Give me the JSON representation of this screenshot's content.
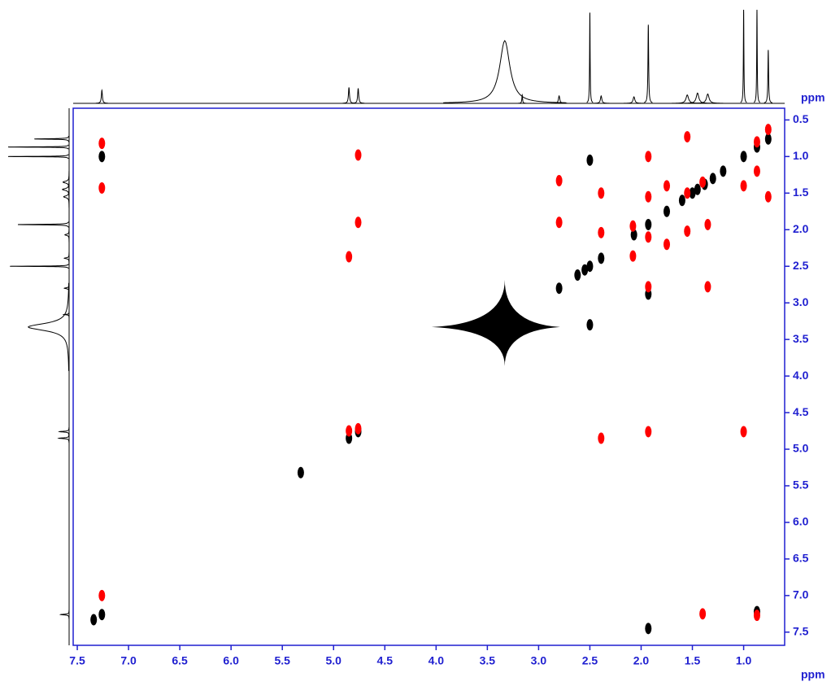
{
  "chart_data": {
    "type": "nmr2d",
    "x_label": "ppm",
    "y_label": "ppm",
    "xlim": [
      7.54,
      0.6
    ],
    "ylim": [
      0.34,
      7.68
    ],
    "xticks": [
      7.5,
      {
        "value": 7,
        "label": "7.0"
      },
      6.5,
      {
        "value": 6,
        "label": "6.0"
      },
      5.5,
      {
        "value": 5,
        "label": "5.0"
      },
      4.5,
      {
        "value": 4,
        "label": "4.0"
      },
      3.5,
      {
        "value": 3,
        "label": "3.0"
      },
      2.5,
      {
        "value": 2,
        "label": "2.0"
      },
      1.5,
      {
        "value": 1,
        "label": "1.0"
      }
    ],
    "yticks": [
      0.5,
      {
        "value": 1,
        "label": "1.0"
      },
      1.5,
      {
        "value": 2,
        "label": "2.0"
      },
      2.5,
      {
        "value": 3,
        "label": "3.0"
      },
      3.5,
      {
        "value": 4,
        "label": "4.0"
      },
      4.5,
      {
        "value": 5,
        "label": "5.0"
      },
      5.5,
      {
        "value": 6,
        "label": "6.0"
      },
      6.5,
      {
        "value": 7,
        "label": "7.0"
      },
      7.5
    ],
    "axis_color": "#1f1fd0",
    "series": [
      {
        "color": "#000000",
        "marker": "ellipse",
        "x": [
          7.26,
          7.34,
          5.32,
          4.85,
          4.76,
          2.8,
          2.62,
          2.55,
          2.5,
          2.39,
          2.07,
          1.93,
          1.75,
          1.6,
          1.5,
          1.45,
          1.38,
          1.3,
          1.2,
          1.0,
          0.87,
          0.76,
          7.26,
          1.93,
          2.5,
          2.5,
          0.87,
          1.93
        ],
        "values": [
          7.26,
          7.33,
          5.32,
          4.85,
          4.76,
          2.8,
          2.62,
          2.55,
          2.5,
          2.39,
          2.07,
          1.93,
          1.75,
          1.6,
          1.5,
          1.45,
          1.38,
          1.3,
          1.2,
          1.0,
          0.87,
          0.76,
          1.0,
          2.88,
          1.05,
          3.3,
          7.22,
          7.45
        ]
      },
      {
        "color": "#000000",
        "marker": "star",
        "x": [
          3.33
        ],
        "values": [
          3.33
        ]
      },
      {
        "color": "#ff0000",
        "marker": "ellipse",
        "x": [
          7.26,
          7.26,
          7.26,
          4.76,
          4.76,
          4.85,
          4.85,
          4.76,
          2.8,
          2.8,
          2.39,
          2.39,
          2.39,
          2.08,
          2.08,
          1.93,
          1.93,
          1.93,
          1.93,
          1.93,
          1.75,
          1.75,
          1.55,
          1.55,
          1.55,
          1.4,
          1.35,
          1.35,
          1.4,
          1.0,
          1.0,
          0.87,
          0.87,
          0.87,
          0.76,
          0.76
        ],
        "values": [
          0.82,
          1.43,
          7.0,
          0.98,
          1.9,
          2.37,
          4.75,
          4.72,
          1.33,
          1.9,
          2.04,
          1.5,
          4.85,
          2.36,
          1.95,
          1.0,
          1.55,
          2.1,
          2.78,
          4.76,
          1.4,
          2.2,
          0.73,
          1.5,
          2.02,
          1.35,
          1.93,
          2.78,
          7.25,
          1.4,
          4.76,
          0.8,
          1.2,
          7.27,
          1.55,
          0.63
        ]
      }
    ],
    "projection": {
      "color": "#000000",
      "x": [
        7.26,
        4.85,
        4.76,
        3.33,
        3.16,
        2.8,
        2.5,
        2.39,
        2.07,
        1.93,
        1.55,
        1.45,
        1.35,
        1.0,
        0.87,
        0.76
      ],
      "values": [
        14,
        17,
        16,
        67,
        9,
        8,
        97,
        8,
        7,
        84,
        9,
        11,
        10,
        100,
        100,
        57
      ],
      "widths": [
        0.006,
        0.006,
        0.006,
        0.06,
        0.004,
        0.008,
        0.003,
        0.008,
        0.01,
        0.004,
        0.015,
        0.015,
        0.015,
        0.003,
        0.003,
        0.004
      ]
    }
  }
}
